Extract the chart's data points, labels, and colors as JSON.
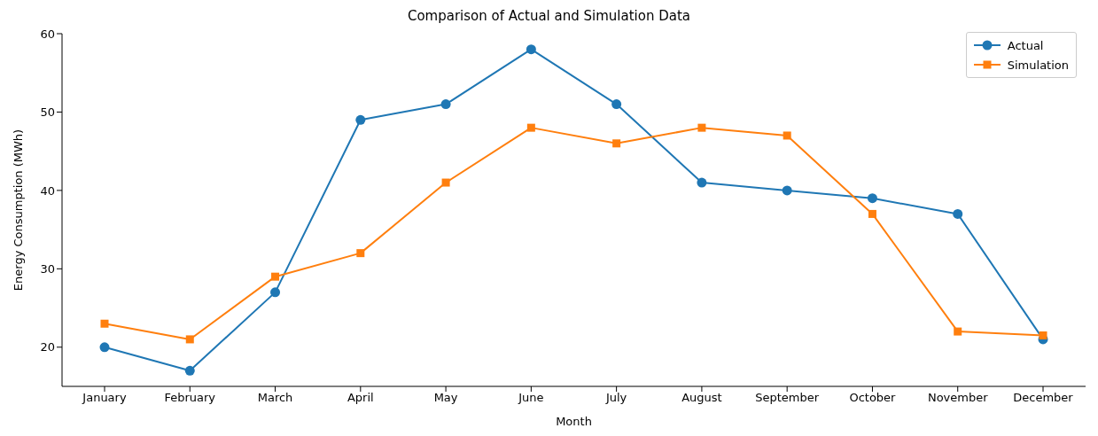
{
  "chart_data": {
    "type": "line",
    "title": "Comparison of Actual and Simulation Data",
    "xlabel": "Month",
    "ylabel": "Energy Consumption (MWh)",
    "categories": [
      "January",
      "February",
      "March",
      "April",
      "May",
      "June",
      "July",
      "August",
      "September",
      "October",
      "November",
      "December"
    ],
    "series": [
      {
        "name": "Actual",
        "color": "#1f77b4",
        "marker": "circle",
        "values": [
          20,
          17,
          27,
          49,
          51,
          58,
          51,
          41,
          40,
          39,
          37,
          21
        ]
      },
      {
        "name": "Simulation",
        "color": "#ff7f0e",
        "marker": "square",
        "values": [
          23,
          21,
          29,
          32,
          41,
          48,
          46,
          48,
          47,
          37,
          22,
          21.5
        ]
      }
    ],
    "ylim": [
      15,
      60
    ],
    "yticks": [
      20,
      30,
      40,
      50,
      60
    ],
    "grid": false,
    "legend": "top right",
    "line_style": "solid"
  }
}
